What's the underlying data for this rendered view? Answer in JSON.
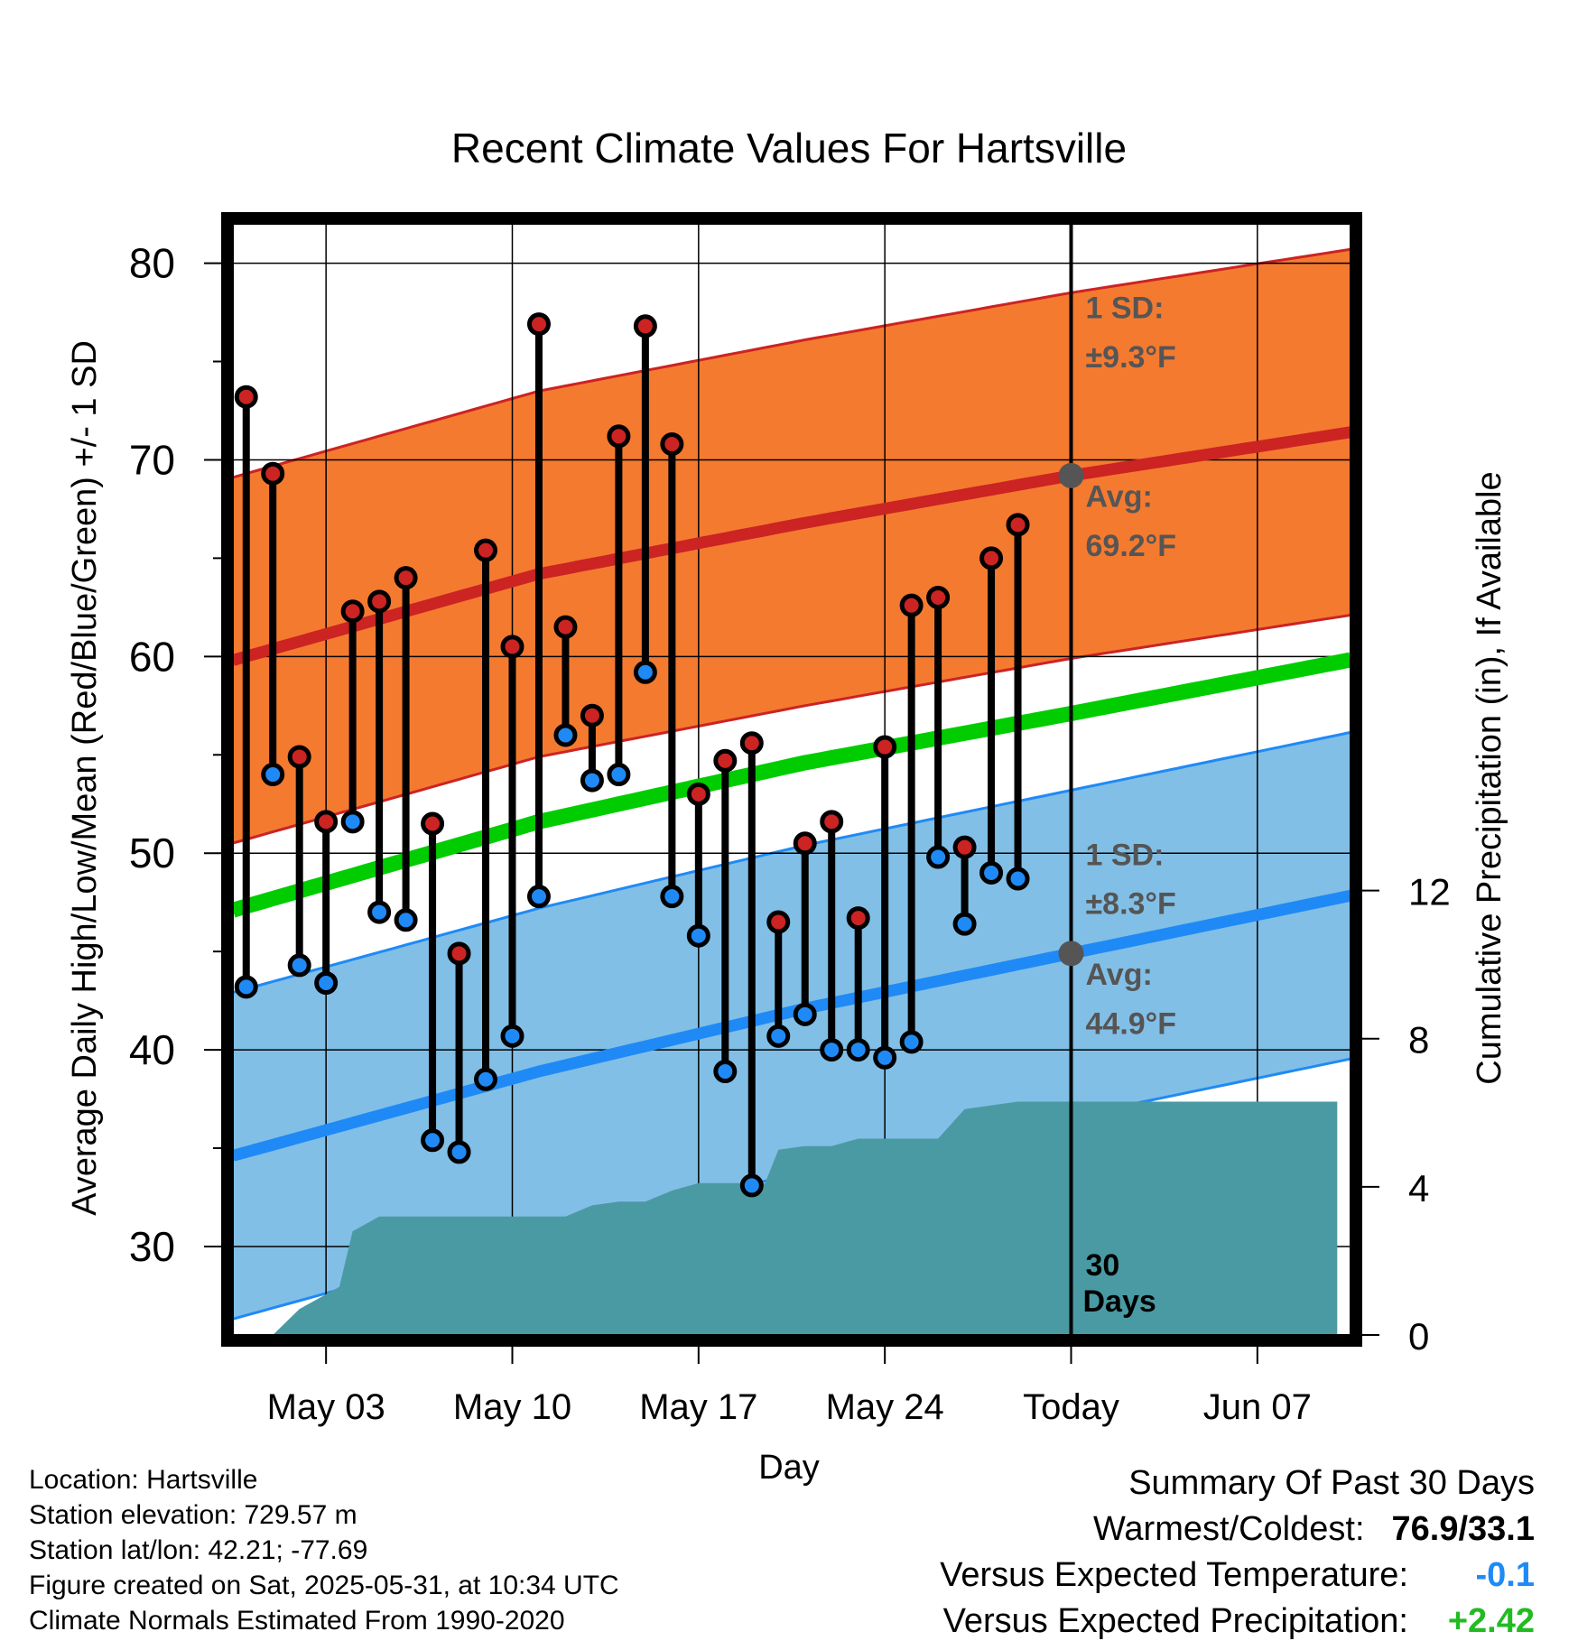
{
  "chart_data": {
    "type": "line",
    "title": "Recent Climate Values For Hartsville",
    "xlabel": "Day",
    "ylabel": "Average Daily High/Low/Mean (Red/Blue/Green) +/- 1 SD",
    "y2label": "Cumulative Precipitation (in), If Available",
    "ylim": [
      25.5,
      82
    ],
    "y2lim": [
      0,
      30
    ],
    "xlim": [
      -1.5,
      40.5
    ],
    "y_ticks": [
      30,
      40,
      50,
      60,
      70,
      80
    ],
    "y2_ticks": [
      0,
      4,
      8,
      12
    ],
    "x_ticks": [
      {
        "day": 2,
        "label": "May 03"
      },
      {
        "day": 9,
        "label": "May 10"
      },
      {
        "day": 16,
        "label": "May 17"
      },
      {
        "day": 23,
        "label": "May 24"
      },
      {
        "day": 30,
        "label": "Today"
      },
      {
        "day": 37,
        "label": "Jun 07"
      }
    ],
    "today_day": 30,
    "grid": true,
    "normals": {
      "days": [
        -1,
        10,
        20,
        30,
        40
      ],
      "avg_high": [
        60.0,
        64.2,
        66.8,
        69.2,
        71.3
      ],
      "avg_low": [
        34.8,
        38.9,
        42.1,
        44.9,
        47.7
      ],
      "avg_mean": [
        47.3,
        51.6,
        54.6,
        57.1,
        59.7
      ],
      "sd_high": 9.3,
      "sd_low": 8.3
    },
    "series": [
      {
        "name": "High",
        "days": [
          -1,
          0,
          1,
          2,
          3,
          4,
          5,
          6,
          7,
          8,
          9,
          10,
          11,
          12,
          13,
          14,
          15,
          16,
          17,
          18,
          19,
          20,
          21,
          22,
          23,
          24,
          25,
          26,
          27,
          28,
          29
        ],
        "values": [
          73.2,
          69.3,
          54.9,
          51.6,
          62.3,
          62.8,
          64.0,
          51.5,
          44.9,
          65.4,
          60.5,
          76.9,
          61.5,
          57.0,
          71.2,
          76.8,
          70.8,
          53.0,
          54.7,
          55.6,
          46.5,
          50.5,
          51.6,
          46.7,
          55.4,
          62.6,
          63.0,
          50.3,
          65.0,
          66.7,
          null
        ]
      },
      {
        "name": "Low",
        "days": [
          -1,
          0,
          1,
          2,
          3,
          4,
          5,
          6,
          7,
          8,
          9,
          10,
          11,
          12,
          13,
          14,
          15,
          16,
          17,
          18,
          19,
          20,
          21,
          22,
          23,
          24,
          25,
          26,
          27,
          28,
          29
        ],
        "values": [
          43.2,
          54.0,
          44.3,
          43.4,
          51.6,
          47.0,
          46.6,
          35.4,
          34.8,
          38.5,
          40.7,
          47.8,
          56.0,
          53.7,
          54.0,
          59.2,
          47.8,
          45.8,
          38.9,
          33.1,
          40.7,
          41.8,
          40.0,
          40.0,
          39.6,
          40.4,
          49.8,
          46.4,
          49.0,
          48.7,
          null
        ]
      },
      {
        "name": "Cumulative Precipitation",
        "days": [
          0,
          1,
          2,
          2.5,
          3,
          4,
          5,
          6,
          7,
          8,
          9,
          10,
          11,
          12,
          13,
          14,
          15,
          16,
          17,
          18,
          18.5,
          19,
          20,
          21,
          22,
          23,
          24,
          25,
          26,
          27,
          28,
          29,
          30,
          31,
          32,
          33,
          34,
          35,
          36,
          37,
          38,
          39,
          40
        ],
        "values": [
          0,
          0.7,
          1.1,
          1.3,
          2.8,
          3.2,
          3.2,
          3.2,
          3.2,
          3.2,
          3.2,
          3.2,
          3.2,
          3.5,
          3.6,
          3.6,
          3.9,
          4.1,
          4.1,
          4.1,
          4.1,
          5.0,
          5.1,
          5.1,
          5.3,
          5.3,
          5.3,
          5.3,
          6.1,
          6.2,
          6.3,
          6.3,
          6.3,
          6.3,
          6.3,
          6.3,
          6.3,
          6.3,
          6.3,
          6.3,
          6.3,
          6.3,
          6.3
        ]
      }
    ],
    "annotations": {
      "sd_high_label": "1 SD:",
      "sd_high_value": "±9.3°F",
      "avg_high_label": "Avg:",
      "avg_high_value": "69.2°F",
      "sd_low_label": "1 SD:",
      "sd_low_value": "±8.3°F",
      "avg_low_label": "Avg:",
      "avg_low_value": "44.9°F",
      "days_count": "30",
      "days_word": "Days"
    },
    "colors": {
      "high_band": "#f47a30",
      "high_line": "#cc2323",
      "low_band": "#82bfe6",
      "low_line": "#1f8af5",
      "mean_line": "#00cc00",
      "precip": "#4a9aa3",
      "high_dot": "#cc2323",
      "low_dot": "#1f8af5",
      "annotation": "#555555"
    }
  },
  "info": {
    "location": "Location: Hartsville",
    "elevation": "Station elevation: 729.57 m",
    "latlon": "Station lat/lon: 42.21; -77.69",
    "created": "Figure created on Sat, 2025-05-31, at 10:34 UTC",
    "normals": "Climate Normals Estimated From 1990-2020"
  },
  "summary": {
    "heading": "Summary Of Past 30 Days",
    "warm_cold_label": "Warmest/Coldest:",
    "warm_cold_value": "76.9/33.1",
    "temp_label": "Versus Expected Temperature:",
    "temp_value": "-0.1",
    "temp_color": "#1f8af5",
    "precip_label": "Versus Expected Precipitation:",
    "precip_value": "+2.42",
    "precip_color": "#22bb22"
  }
}
